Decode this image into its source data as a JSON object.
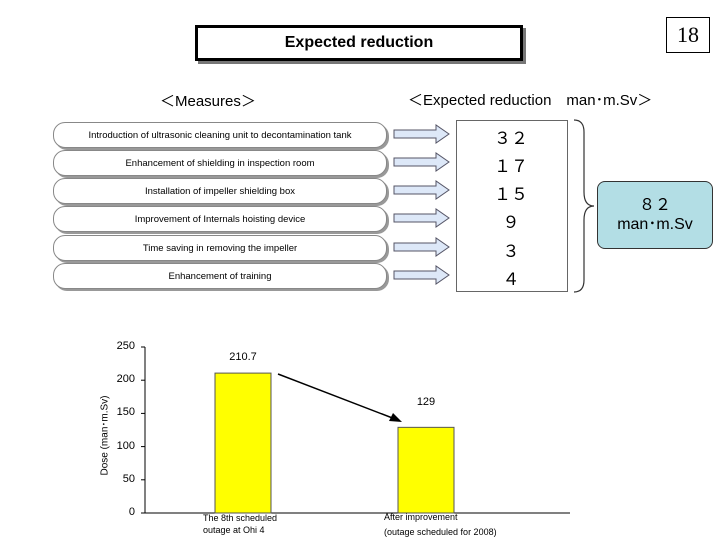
{
  "header": {
    "title": "Expected reduction",
    "page_number": "18",
    "measures_heading": "＜Measures＞",
    "reduction_heading": "＜Expected reduction　man･m.Sv＞"
  },
  "measures": [
    {
      "label": "Introduction of ultrasonic cleaning unit to decontamination tank",
      "value": "３２"
    },
    {
      "label": "Enhancement of shielding in inspection room",
      "value": "１７"
    },
    {
      "label": "Installation of impeller shielding box",
      "value": "１５"
    },
    {
      "label": "Improvement of Internals hoisting device",
      "value": "９"
    },
    {
      "label": "Time saving in removing the impeller",
      "value": "３"
    },
    {
      "label": "Enhancement of training",
      "value": "４"
    }
  ],
  "total": {
    "value": "８２",
    "unit": "man･m.Sv"
  },
  "colors": {
    "bar": "#ffff00",
    "total_box": "#b3dee5",
    "arrow": "#dde8f8"
  },
  "chart_data": {
    "type": "bar",
    "categories": [
      "The 8th scheduled outage at Ohi 4",
      "After improvement (outage scheduled for 2008)"
    ],
    "category_lines": [
      [
        "The 8th scheduled",
        "outage at Ohi 4"
      ],
      [
        "After improvement",
        "(outage scheduled for 2008)"
      ]
    ],
    "values": [
      210.7,
      129
    ],
    "value_labels": [
      "210.7",
      "129"
    ],
    "ylabel": "Dose (man･m.Sv)",
    "ylim": [
      0,
      250
    ],
    "yticks": [
      0,
      50,
      100,
      150,
      200,
      250
    ],
    "grid": false,
    "legend": "none"
  }
}
